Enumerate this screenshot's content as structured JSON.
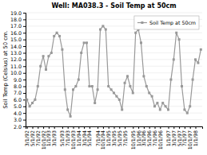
{
  "chart_data": {
    "type": "line",
    "title": "Well: MA038.3 - Soil Temp at 50cm",
    "y_label": "Soil Temp (Celsius) at 50 cm.",
    "categories": [
      "3/1/92",
      null,
      "5/1/92",
      null,
      "7/1/92",
      null,
      "10/1/92",
      null,
      "1/1/93",
      null,
      "3/1/93",
      null,
      null,
      "5/1/93",
      null,
      "7/1/93",
      null,
      "10/1/93",
      null,
      "1/1/94",
      null,
      "3/1/94",
      null,
      "5/1/94",
      null,
      null,
      "7/1/94",
      null,
      "10/1/94",
      null,
      "1/1/95",
      null,
      "3/1/95",
      null,
      "5/1/95",
      null,
      "7/1/95",
      null,
      null,
      "10/1/95",
      null,
      "1/1/96",
      null,
      "3/1/96",
      null,
      "5/1/96",
      null,
      "7/1/96",
      null,
      "10/1/96",
      null,
      null,
      "1/1/97",
      null,
      "3/1/97",
      null,
      "5/1/97",
      null,
      "7/1/97",
      null,
      "10/1/97",
      null,
      "1/1/98",
      null,
      null
    ],
    "series": [
      {
        "name": "Soil Temp at 50cm",
        "color": "#999999",
        "marker": "square",
        "values": [
          6.0,
          5.0,
          5.5,
          6.0,
          8.0,
          11.0,
          12.5,
          10.5,
          12.5,
          13.0,
          15.5,
          16.0,
          15.5,
          13.5,
          7.5,
          4.5,
          3.5,
          7.5,
          8.0,
          9.0,
          13.0,
          14.5,
          14.5,
          8.0,
          8.0,
          5.5,
          7.5,
          16.5,
          17.0,
          16.5,
          8.0,
          7.5,
          7.0,
          6.5,
          6.0,
          4.5,
          8.5,
          9.5,
          8.0,
          7.0,
          16.0,
          16.5,
          14.5,
          9.5,
          8.0,
          7.0,
          6.5,
          5.0,
          5.5,
          4.5,
          5.5,
          5.0,
          4.5,
          9.0,
          12.0,
          16.0,
          15.0,
          8.0,
          4.5,
          4.0,
          5.0,
          9.0,
          12.0,
          11.5,
          13.5
        ]
      }
    ],
    "ylim": [
      2.0,
      19.0
    ],
    "yticks": [
      {
        "value": 2.0,
        "label": "2.0"
      },
      {
        "value": 3.0,
        "label": "3.0"
      },
      {
        "value": 4.0,
        "label": "4.0"
      },
      {
        "value": 5.0,
        "label": "5.0"
      },
      {
        "value": 6.0,
        "label": "6.0"
      },
      {
        "value": 7.0,
        "label": "7.0"
      },
      {
        "value": 8.0,
        "label": "8.0"
      },
      {
        "value": 9.0,
        "label": "9.0"
      },
      {
        "value": 10.0,
        "label": "10.0"
      },
      {
        "value": 11.0,
        "label": "11.0"
      },
      {
        "value": 12.0,
        "label": "12.0"
      },
      {
        "value": 13.0,
        "label": "13.0"
      },
      {
        "value": 14.0,
        "label": "14.0"
      },
      {
        "value": 15.0,
        "label": "15.0"
      },
      {
        "value": 16.0,
        "label": "16.0"
      },
      {
        "value": 17.0,
        "label": "17.0"
      },
      {
        "value": 18.0,
        "label": "18.0"
      },
      {
        "value": 19.0,
        "label": "19.0"
      }
    ],
    "grid": true,
    "legend": "upper right"
  }
}
